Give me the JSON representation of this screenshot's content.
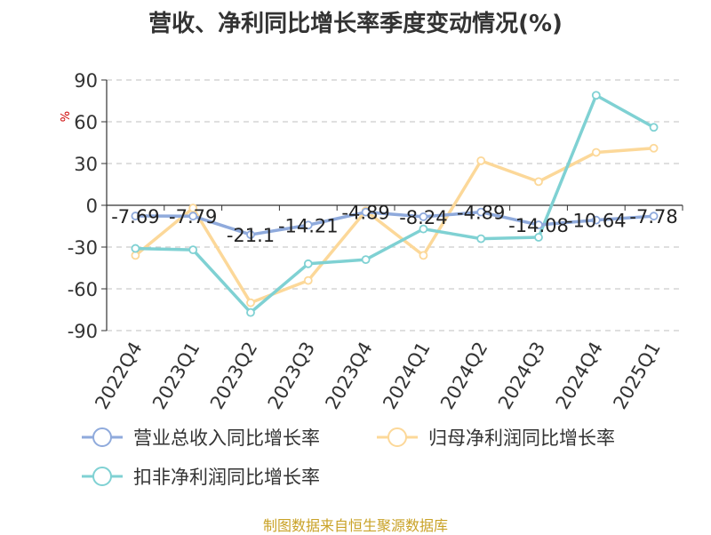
{
  "chart_data": {
    "type": "line",
    "title": "营收、净利同比增长率季度变动情况(%)",
    "ylabel": "%",
    "xlabel": "",
    "categories": [
      "2022Q4",
      "2023Q1",
      "2023Q2",
      "2023Q3",
      "2023Q4",
      "2024Q1",
      "2024Q2",
      "2024Q3",
      "2024Q4",
      "2025Q1"
    ],
    "yticks": [
      90,
      60,
      30,
      0,
      -30,
      -60,
      -90
    ],
    "ylim": [
      -90,
      90
    ],
    "grid": true,
    "legend_position": "bottom",
    "series": [
      {
        "name": "营业总收入同比增长率",
        "color": "#8faadc",
        "values": [
          -7.69,
          -7.79,
          -21.1,
          -14.21,
          -4.89,
          -8.24,
          -4.89,
          -14.08,
          -10.64,
          -7.78
        ],
        "labels": [
          "-7.69",
          "-7.79",
          "-21.1",
          "-14.21",
          "-4.89",
          "-8.24",
          "-4.89",
          "-14.08",
          "-10.64",
          "-7.78"
        ]
      },
      {
        "name": "归母净利润同比增长率",
        "color": "#fcd899",
        "values": [
          -36,
          -2,
          -70,
          -54,
          -4,
          -36,
          32,
          17,
          38,
          41
        ]
      },
      {
        "name": "扣非净利润同比增长率",
        "color": "#7fd1d3",
        "values": [
          -31,
          -32,
          -77,
          -42,
          -39,
          -17,
          -24,
          -23,
          79,
          56
        ]
      }
    ]
  },
  "footer": "制图数据来自恒生聚源数据库"
}
